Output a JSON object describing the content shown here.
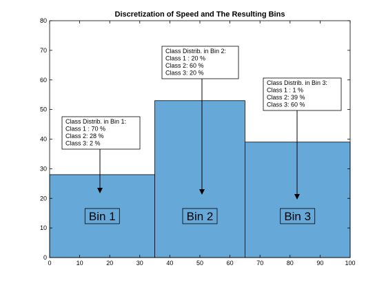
{
  "chart_data": {
    "type": "bar",
    "title": "Discretization of Speed and The Resulting Bins",
    "xlabel": "",
    "ylabel": "",
    "xlim": [
      0,
      100
    ],
    "ylim": [
      0,
      80
    ],
    "xticks": [
      0,
      10,
      20,
      30,
      40,
      50,
      60,
      70,
      80,
      90,
      100
    ],
    "yticks": [
      0,
      10,
      20,
      30,
      40,
      50,
      60,
      70,
      80
    ],
    "grid": false,
    "bar_color": "#66a8d8",
    "bins": [
      {
        "label": "Bin 1",
        "x_start": 0,
        "x_end": 35,
        "value": 28,
        "annotation": [
          "Class Distrib. in Bin 1:",
          "Class 1 : 70 %",
          "Class 2:  28 %",
          "Class 3:  2 %"
        ]
      },
      {
        "label": "Bin 2",
        "x_start": 35,
        "x_end": 65,
        "value": 53,
        "annotation": [
          "Class Distrib. in Bin 2:",
          "Class 1 : 20 %",
          "Class 2:  60 %",
          "Class 3:  20 %"
        ]
      },
      {
        "label": "Bin 3",
        "x_start": 65,
        "x_end": 100,
        "value": 39,
        "annotation": [
          "Class Distrib. in Bin 3:",
          "Class 1 : 1 %",
          "Class 2:  39 %",
          "Class 3:  60 %"
        ]
      }
    ]
  }
}
